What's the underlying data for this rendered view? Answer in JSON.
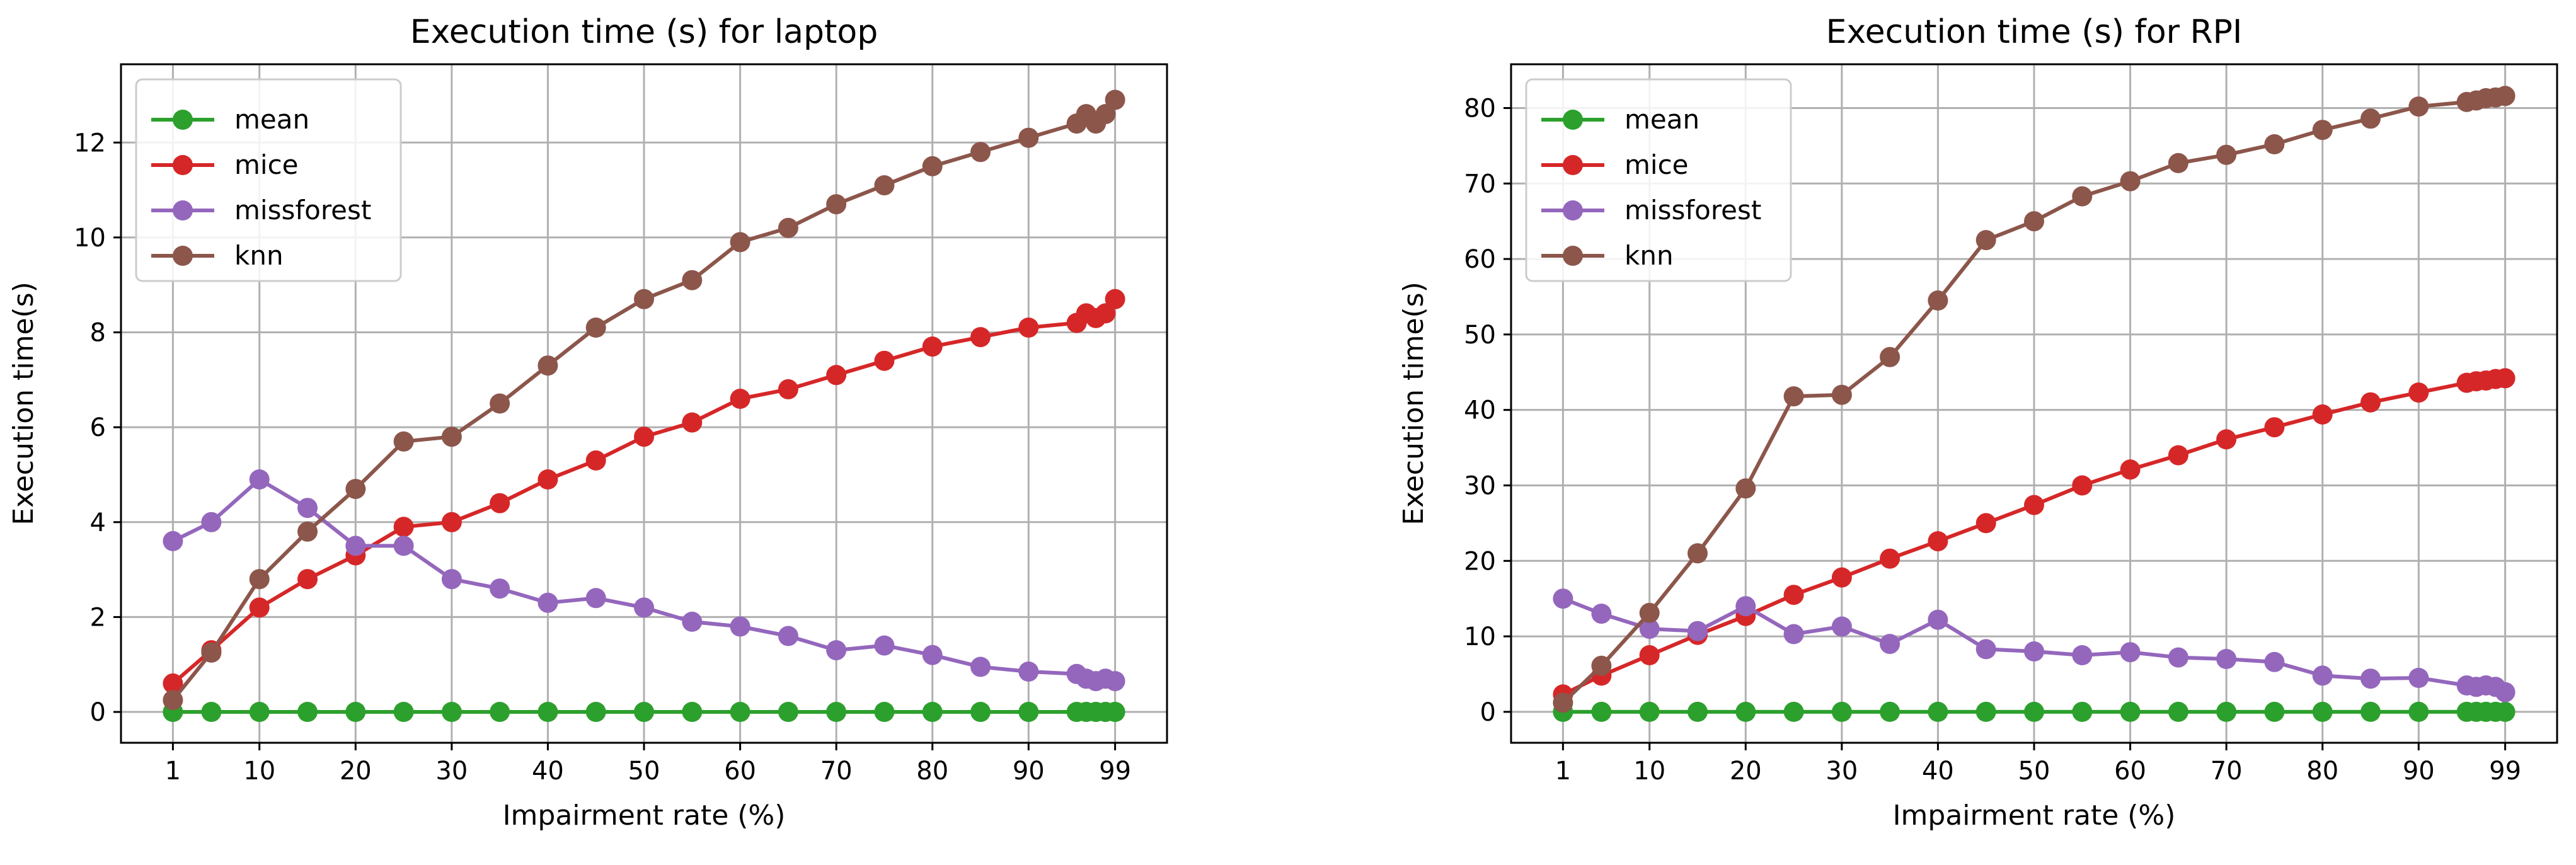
{
  "chart_data": [
    {
      "type": "line",
      "title": "Execution time (s) for laptop",
      "xlabel": "Impairment rate (%)",
      "ylabel": "Execution time(s)",
      "xlim": [
        -4.4,
        104.4
      ],
      "ylim": [
        -0.65,
        13.65
      ],
      "xticks": [
        1,
        10,
        20,
        30,
        40,
        50,
        60,
        70,
        80,
        90,
        99
      ],
      "yticks": [
        0,
        2,
        4,
        6,
        8,
        10,
        12
      ],
      "grid": true,
      "legend_position": "top-left",
      "x": [
        1,
        5,
        10,
        15,
        20,
        25,
        30,
        35,
        40,
        45,
        50,
        55,
        60,
        65,
        70,
        75,
        80,
        85,
        90,
        95,
        96,
        97,
        98,
        99
      ],
      "series": [
        {
          "name": "mean",
          "color": "#2ca02c",
          "values": [
            0,
            0,
            0,
            0,
            0,
            0,
            0,
            0,
            0,
            0,
            0,
            0,
            0,
            0,
            0,
            0,
            0,
            0,
            0,
            0,
            0,
            0,
            0,
            0
          ]
        },
        {
          "name": "mice",
          "color": "#d62728",
          "values": [
            0.6,
            1.3,
            2.2,
            2.8,
            3.3,
            3.9,
            4.0,
            4.4,
            4.9,
            5.3,
            5.8,
            6.1,
            6.6,
            6.8,
            7.1,
            7.4,
            7.7,
            7.9,
            8.1,
            8.2,
            8.4,
            8.3,
            8.4,
            8.7
          ]
        },
        {
          "name": "missforest",
          "color": "#9467bd",
          "values": [
            3.6,
            4.0,
            4.9,
            4.3,
            3.5,
            3.5,
            2.8,
            2.6,
            2.3,
            2.4,
            2.2,
            1.9,
            1.8,
            1.6,
            1.3,
            1.4,
            1.2,
            0.95,
            0.85,
            0.8,
            0.7,
            0.65,
            0.7,
            0.65
          ]
        },
        {
          "name": "knn",
          "color": "#8c564b",
          "values": [
            0.25,
            1.25,
            2.8,
            3.8,
            4.7,
            5.7,
            5.8,
            6.5,
            7.3,
            8.1,
            8.7,
            9.1,
            9.9,
            10.2,
            10.7,
            11.1,
            11.5,
            11.8,
            12.1,
            12.4,
            12.6,
            12.4,
            12.6,
            12.9
          ]
        }
      ]
    },
    {
      "type": "line",
      "title": "Execution time (s) for RPI",
      "xlabel": "Impairment rate (%)",
      "ylabel": "Execution time(s)",
      "xlim": [
        -4.4,
        104.4
      ],
      "ylim": [
        -4.1,
        85.8
      ],
      "xticks": [
        1,
        10,
        20,
        30,
        40,
        50,
        60,
        70,
        80,
        90,
        99
      ],
      "yticks": [
        0,
        10,
        20,
        30,
        40,
        50,
        60,
        70,
        80
      ],
      "grid": true,
      "legend_position": "top-left",
      "x": [
        1,
        5,
        10,
        15,
        20,
        25,
        30,
        35,
        40,
        45,
        50,
        55,
        60,
        65,
        70,
        75,
        80,
        85,
        90,
        95,
        96,
        97,
        98,
        99
      ],
      "series": [
        {
          "name": "mean",
          "color": "#2ca02c",
          "values": [
            0,
            0,
            0,
            0,
            0,
            0,
            0,
            0,
            0,
            0,
            0,
            0,
            0,
            0,
            0,
            0,
            0,
            0,
            0,
            0,
            0,
            0,
            0,
            0
          ]
        },
        {
          "name": "mice",
          "color": "#d62728",
          "values": [
            2.3,
            4.8,
            7.5,
            10.2,
            12.7,
            15.5,
            17.8,
            20.3,
            22.6,
            25.0,
            27.4,
            30.0,
            32.1,
            34.0,
            36.1,
            37.7,
            39.4,
            41.0,
            42.3,
            43.6,
            43.8,
            43.9,
            44.1,
            44.2
          ]
        },
        {
          "name": "missforest",
          "color": "#9467bd",
          "values": [
            15.0,
            13.0,
            11.0,
            10.7,
            14.0,
            10.3,
            11.3,
            9.0,
            12.2,
            8.3,
            8.0,
            7.5,
            7.9,
            7.2,
            7.0,
            6.6,
            4.8,
            4.4,
            4.5,
            3.5,
            3.3,
            3.5,
            3.3,
            2.6
          ]
        },
        {
          "name": "knn",
          "color": "#8c564b",
          "values": [
            1.2,
            6.1,
            13.1,
            21.0,
            29.6,
            41.8,
            42.0,
            47.0,
            54.5,
            62.5,
            65.0,
            68.3,
            70.3,
            72.7,
            73.8,
            75.2,
            77.1,
            78.6,
            80.2,
            80.8,
            81.0,
            81.3,
            81.4,
            81.6
          ]
        }
      ]
    }
  ]
}
